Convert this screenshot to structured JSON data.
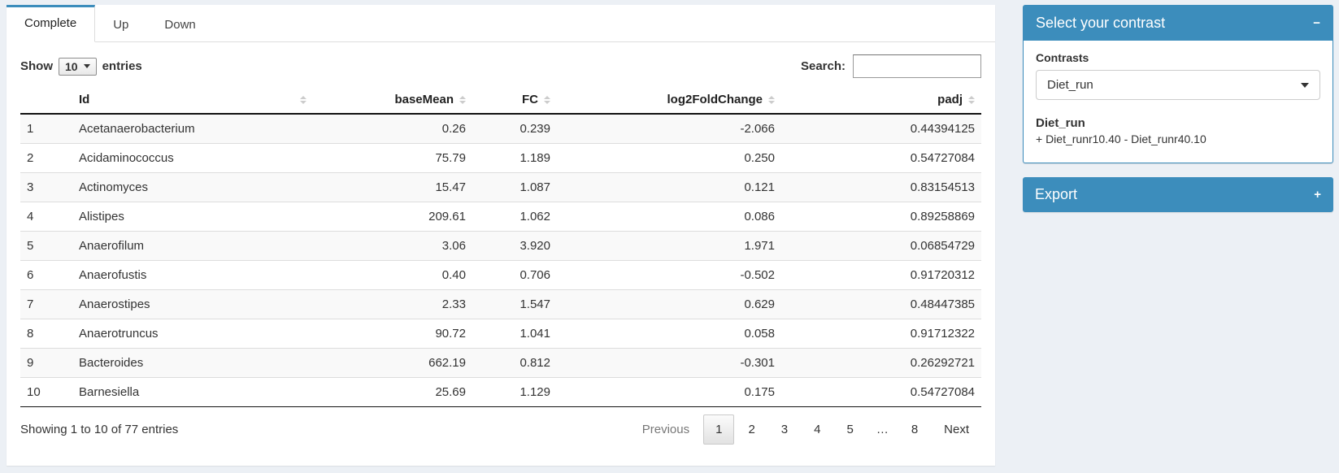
{
  "colors": {
    "primary": "#3c8dbc",
    "page_bg": "#ecf0f5"
  },
  "tabs": [
    {
      "label": "Complete",
      "active": true
    },
    {
      "label": "Up",
      "active": false
    },
    {
      "label": "Down",
      "active": false
    }
  ],
  "table_controls": {
    "show_label": "Show",
    "page_size": "10",
    "entries_label": "entries",
    "search_label": "Search:",
    "search_value": ""
  },
  "table": {
    "columns": [
      {
        "label": "Id"
      },
      {
        "label": "baseMean"
      },
      {
        "label": "FC"
      },
      {
        "label": "log2FoldChange"
      },
      {
        "label": "padj"
      }
    ],
    "rows": [
      {
        "index": "1",
        "id": "Acetanaerobacterium",
        "baseMean": "0.26",
        "fc": "0.239",
        "log2fc": "-2.066",
        "padj": "0.44394125"
      },
      {
        "index": "2",
        "id": "Acidaminococcus",
        "baseMean": "75.79",
        "fc": "1.189",
        "log2fc": "0.250",
        "padj": "0.54727084"
      },
      {
        "index": "3",
        "id": "Actinomyces",
        "baseMean": "15.47",
        "fc": "1.087",
        "log2fc": "0.121",
        "padj": "0.83154513"
      },
      {
        "index": "4",
        "id": "Alistipes",
        "baseMean": "209.61",
        "fc": "1.062",
        "log2fc": "0.086",
        "padj": "0.89258869"
      },
      {
        "index": "5",
        "id": "Anaerofilum",
        "baseMean": "3.06",
        "fc": "3.920",
        "log2fc": "1.971",
        "padj": "0.06854729"
      },
      {
        "index": "6",
        "id": "Anaerofustis",
        "baseMean": "0.40",
        "fc": "0.706",
        "log2fc": "-0.502",
        "padj": "0.91720312"
      },
      {
        "index": "7",
        "id": "Anaerostipes",
        "baseMean": "2.33",
        "fc": "1.547",
        "log2fc": "0.629",
        "padj": "0.48447385"
      },
      {
        "index": "8",
        "id": "Anaerotruncus",
        "baseMean": "90.72",
        "fc": "1.041",
        "log2fc": "0.058",
        "padj": "0.91712322"
      },
      {
        "index": "9",
        "id": "Bacteroides",
        "baseMean": "662.19",
        "fc": "0.812",
        "log2fc": "-0.301",
        "padj": "0.26292721"
      },
      {
        "index": "10",
        "id": "Barnesiella",
        "baseMean": "25.69",
        "fc": "1.129",
        "log2fc": "0.175",
        "padj": "0.54727084"
      }
    ],
    "info": "Showing 1 to 10 of 77 entries"
  },
  "pagination": {
    "previous": "Previous",
    "pages": [
      "1",
      "2",
      "3",
      "4",
      "5",
      "…",
      "8"
    ],
    "current": "1",
    "next": "Next"
  },
  "contrast_panel": {
    "title": "Select your contrast",
    "collapse_icon": "−",
    "contrasts_label": "Contrasts",
    "selected_contrast": "Diet_run",
    "contrast_name": "Diet_run",
    "contrast_formula": "+ Diet_runr10.40 - Diet_runr40.10"
  },
  "export_panel": {
    "title": "Export",
    "expand_icon": "+"
  }
}
